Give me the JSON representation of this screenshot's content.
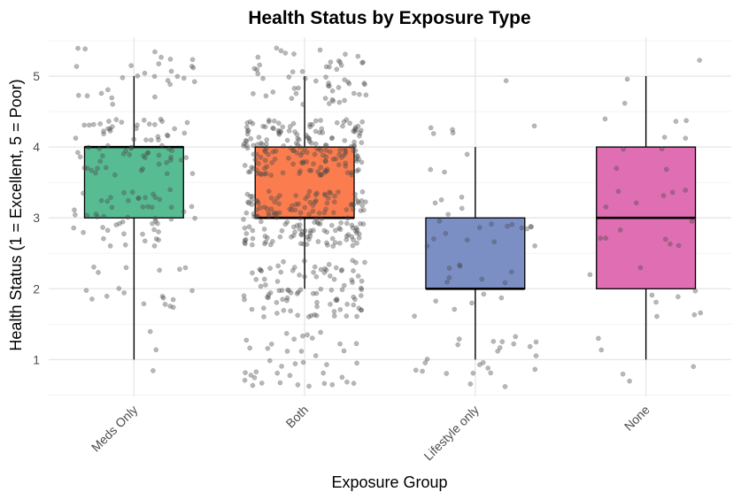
{
  "chart_data": {
    "type": "box",
    "title": "Health Status by Exposure Type",
    "xlabel": "Exposure Group",
    "ylabel": "Health Status (1 = Excellent, 5 = Poor)",
    "ylim": [
      0.48,
      5.55
    ],
    "yticks": [
      1,
      2,
      3,
      4,
      5
    ],
    "grid": true,
    "legend": "none",
    "categories": [
      "Meds Only",
      "Both",
      "Lifestyle only",
      "None"
    ],
    "boxes": [
      {
        "category": "Meds Only",
        "color": "#58bc93",
        "min": 1,
        "q1": 3,
        "median": 4,
        "q3": 4,
        "max": 5,
        "counts": {
          "1": 3,
          "2": 19,
          "3": 52,
          "4": 68,
          "5": 28
        }
      },
      {
        "category": "Both",
        "color": "#fb7d4f",
        "min": 2,
        "q1": 3,
        "median": 3,
        "q3": 4,
        "max": 5,
        "counts": {
          "1": 40,
          "2": 95,
          "3": 165,
          "4": 180,
          "5": 55
        }
      },
      {
        "category": "Lifestyle only",
        "color": "#7b8fc5",
        "min": 1,
        "q1": 2,
        "median": 2,
        "q3": 3,
        "max": 4,
        "counts": {
          "1": 24,
          "2": 14,
          "3": 20,
          "4": 8,
          "5": 1
        }
      },
      {
        "category": "None",
        "color": "#df6fb2",
        "min": 1,
        "q1": 2,
        "median": 3,
        "q3": 4,
        "max": 5,
        "counts": {
          "1": 5,
          "2": 9,
          "3": 13,
          "4": 9,
          "5": 3
        }
      }
    ]
  }
}
